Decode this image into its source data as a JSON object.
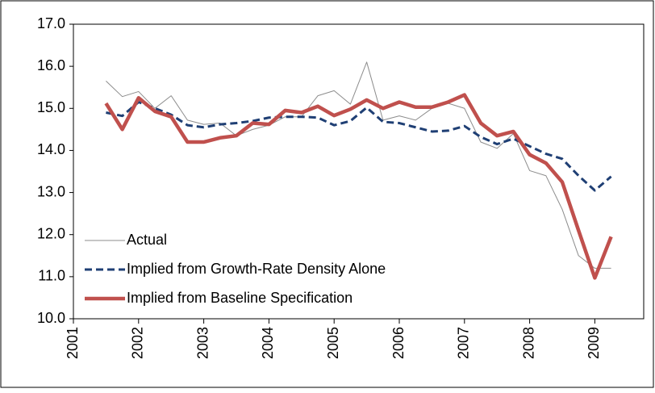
{
  "chart_data": {
    "type": "line",
    "x": [
      2001.5,
      2001.75,
      2002,
      2002.25,
      2002.5,
      2002.75,
      2003,
      2003.25,
      2003.5,
      2003.75,
      2004,
      2004.25,
      2004.5,
      2004.75,
      2005,
      2005.25,
      2005.5,
      2005.75,
      2006,
      2006.25,
      2006.5,
      2006.75,
      2007,
      2007.25,
      2007.5,
      2007.75,
      2008,
      2008.25,
      2008.5,
      2008.75,
      2009,
      2009.25
    ],
    "series": [
      {
        "name": "Actual",
        "color": "#8c8c8c",
        "style": "thin",
        "values": [
          15.65,
          15.28,
          15.4,
          15.0,
          15.3,
          14.72,
          14.62,
          14.65,
          14.35,
          14.5,
          14.6,
          14.8,
          14.8,
          15.3,
          15.42,
          15.1,
          16.1,
          14.72,
          14.82,
          14.72,
          15.0,
          15.12,
          15.0,
          14.2,
          14.05,
          14.4,
          13.52,
          13.4,
          12.6,
          11.5,
          11.2,
          11.2
        ]
      },
      {
        "name": "Implied from Growth-Rate Density Alone",
        "color": "#1f3f74",
        "style": "dashed",
        "values": [
          14.9,
          14.82,
          15.15,
          15.0,
          14.85,
          14.6,
          14.55,
          14.62,
          14.65,
          14.7,
          14.78,
          14.8,
          14.8,
          14.78,
          14.6,
          14.7,
          15.02,
          14.68,
          14.65,
          14.55,
          14.45,
          14.47,
          14.58,
          14.32,
          14.15,
          14.28,
          14.1,
          13.92,
          13.8,
          13.4,
          13.05,
          13.38
        ]
      },
      {
        "name": "Implied from Baseline Specification",
        "color": "#c0504d",
        "style": "thick",
        "values": [
          15.12,
          14.5,
          15.25,
          14.93,
          14.8,
          14.2,
          14.2,
          14.3,
          14.35,
          14.65,
          14.62,
          14.95,
          14.9,
          15.05,
          14.83,
          14.98,
          15.2,
          15.0,
          15.15,
          15.03,
          15.03,
          15.15,
          15.32,
          14.65,
          14.35,
          14.45,
          13.9,
          13.7,
          13.25,
          12.1,
          10.97,
          11.95
        ]
      }
    ],
    "xlim": [
      2001,
      2009.75
    ],
    "xticks": [
      2001,
      2002,
      2003,
      2004,
      2005,
      2006,
      2007,
      2008,
      2009
    ],
    "ylim": [
      10,
      17
    ],
    "yticks": [
      {
        "value": 10,
        "label": "10.0"
      },
      {
        "value": 11,
        "label": "11.0"
      },
      {
        "value": 12,
        "label": "12.0"
      },
      {
        "value": 13,
        "label": "13.0"
      },
      {
        "value": 14,
        "label": "14.0"
      },
      {
        "value": 15,
        "label": "15.0"
      },
      {
        "value": 16,
        "label": "16.0"
      },
      {
        "value": 17,
        "label": "17.0"
      }
    ],
    "legend": "lower-left"
  }
}
